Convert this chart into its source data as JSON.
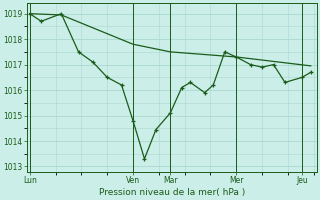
{
  "background_color": "#cceee8",
  "grid_color": "#aad8d0",
  "line_color": "#1a5c1a",
  "ylim": [
    1012.8,
    1019.4
  ],
  "yticks": [
    1013,
    1014,
    1015,
    1016,
    1017,
    1018,
    1019
  ],
  "xlabel": "Pression niveau de la mer( hPa )",
  "day_labels": [
    "Lun",
    "Ven",
    "Mar",
    "Mer",
    "Jeu"
  ],
  "day_positions": [
    0.01,
    0.37,
    0.5,
    0.73,
    0.96
  ],
  "series1_x": [
    0.01,
    0.05,
    0.12,
    0.18,
    0.23,
    0.28,
    0.33,
    0.37,
    0.41,
    0.45,
    0.5,
    0.54,
    0.57,
    0.62,
    0.65,
    0.69,
    0.73,
    0.78,
    0.82,
    0.86,
    0.9,
    0.96,
    0.99
  ],
  "series1_y": [
    1019.0,
    1018.7,
    1019.0,
    1017.5,
    1017.1,
    1016.5,
    1016.2,
    1014.8,
    1013.3,
    1014.45,
    1015.1,
    1016.1,
    1016.3,
    1015.9,
    1016.2,
    1017.5,
    1017.3,
    1017.0,
    1016.9,
    1017.0,
    1016.3,
    1016.5,
    1016.7
  ],
  "series2_x": [
    0.01,
    0.12,
    0.37,
    0.5,
    0.73,
    0.99
  ],
  "series2_y": [
    1019.0,
    1018.95,
    1017.8,
    1017.5,
    1017.3,
    1016.95
  ],
  "xlim": [
    0.0,
    1.01
  ]
}
